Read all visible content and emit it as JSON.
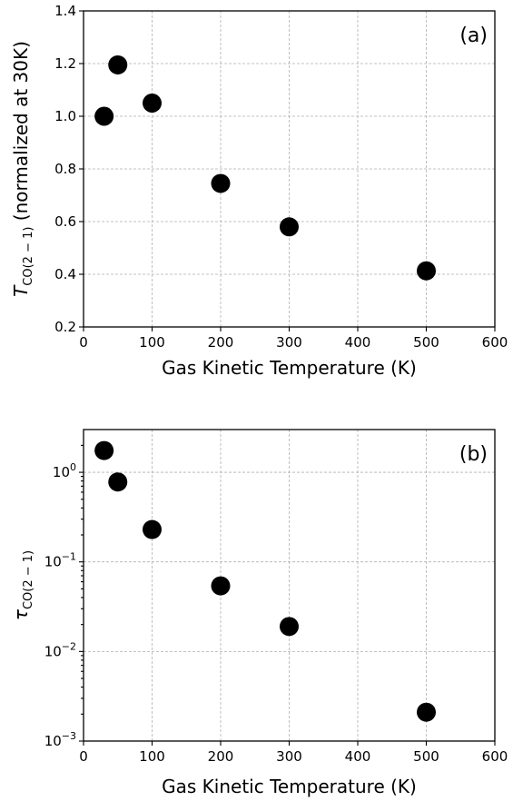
{
  "chart_data": [
    {
      "type": "scatter",
      "panel_label": "(a)",
      "xlabel": "Gas Kinetic Temperature (K)",
      "ylabel": {
        "symbol": "T",
        "subscript": "CO(2 − 1)",
        "suffix": " (normalized at 30K)"
      },
      "xlim": [
        0,
        600
      ],
      "ylim": [
        0.2,
        1.4
      ],
      "y_scale": "linear",
      "xticks": [
        0,
        100,
        200,
        300,
        400,
        500,
        600
      ],
      "xtick_labels": [
        "0",
        "100",
        "200",
        "300",
        "400",
        "500",
        "600"
      ],
      "yticks": [
        0.2,
        0.4,
        0.6,
        0.8,
        1.0,
        1.2,
        1.4
      ],
      "ytick_labels": [
        "0.2",
        "0.4",
        "0.6",
        "0.8",
        "1.0",
        "1.2",
        "1.4"
      ],
      "grid": true,
      "marker_color": "#000000",
      "x": [
        30,
        50,
        100,
        200,
        300,
        500
      ],
      "y": [
        1.0,
        1.195,
        1.05,
        0.745,
        0.58,
        0.413
      ]
    },
    {
      "type": "scatter",
      "panel_label": "(b)",
      "xlabel": "Gas Kinetic Temperature (K)",
      "ylabel": {
        "symbol": "τ",
        "subscript": "CO(2 − 1)",
        "suffix": ""
      },
      "xlim": [
        0,
        600
      ],
      "ylim": [
        0.001,
        3
      ],
      "y_scale": "log",
      "xticks": [
        0,
        100,
        200,
        300,
        400,
        500,
        600
      ],
      "xtick_labels": [
        "0",
        "100",
        "200",
        "300",
        "400",
        "500",
        "600"
      ],
      "yticks": [
        0.001,
        0.01,
        0.1,
        1
      ],
      "ytick_labels": [
        {
          "base": "10",
          "exp": "−3"
        },
        {
          "base": "10",
          "exp": "−2"
        },
        {
          "base": "10",
          "exp": "−1"
        },
        {
          "base": "10",
          "exp": "0"
        }
      ],
      "grid": true,
      "marker_color": "#000000",
      "x": [
        30,
        50,
        100,
        200,
        300,
        500
      ],
      "y": [
        1.75,
        0.78,
        0.23,
        0.054,
        0.019,
        0.0021
      ]
    }
  ]
}
